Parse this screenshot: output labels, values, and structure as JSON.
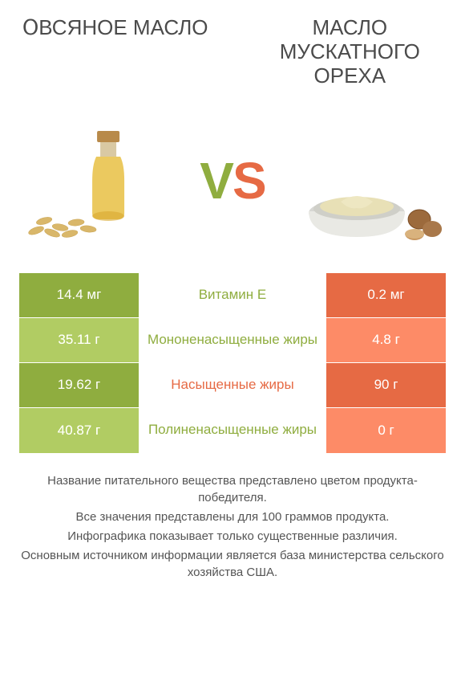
{
  "left": {
    "title": "Օвсяное масло",
    "color_a": "#8fad3f",
    "color_b": "#a4bd5c"
  },
  "right": {
    "title": "Масло мускатного ореха",
    "color_a": "#e66a44",
    "color_b": "#ea815f"
  },
  "vs": {
    "v_color": "#8fad3f",
    "s_color": "#e66a44"
  },
  "rows": [
    {
      "left": "14.4 мг",
      "label": "Витамин E",
      "right": "0.2 мг",
      "winner": "left"
    },
    {
      "left": "35.11 г",
      "label": "Мононенасыщенные жиры",
      "right": "4.8 г",
      "winner": "left"
    },
    {
      "left": "19.62 г",
      "label": "Насыщенные жиры",
      "right": "90 г",
      "winner": "right"
    },
    {
      "left": "40.87 г",
      "label": "Полиненасыщенные жиры",
      "right": "0 г",
      "winner": "left"
    }
  ],
  "notes": [
    "Название питательного вещества представлено цветом продукта-победителя.",
    "Все значения представлены для 100 граммов продукта.",
    "Инфографика показывает только существенные различия.",
    "Основным источником информации является база министерства сельского хозяйства США."
  ],
  "style": {
    "title_fontsize": 26,
    "value_fontsize": 17,
    "note_fontsize": 15,
    "background": "#ffffff"
  }
}
